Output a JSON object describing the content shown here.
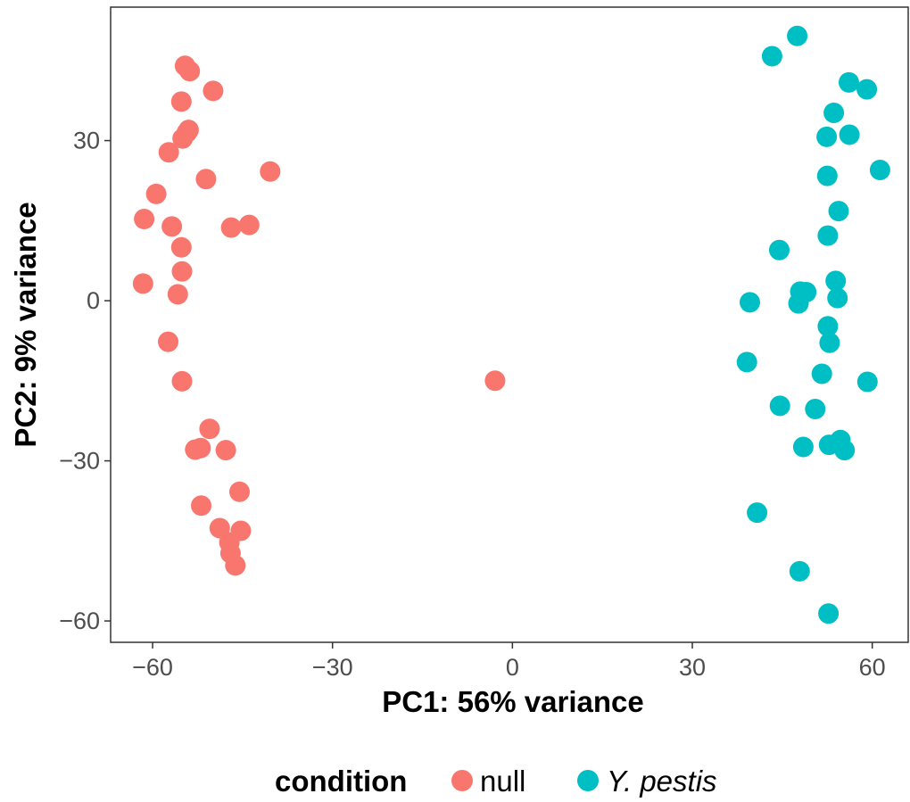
{
  "chart_data": {
    "type": "scatter",
    "xlabel": "PC1: 56% variance",
    "ylabel": "PC2: 9% variance",
    "xlim": [
      -67,
      66
    ],
    "ylim": [
      -64,
      55
    ],
    "x_ticks": [
      -60,
      -30,
      0,
      30,
      60
    ],
    "x_tick_labels": [
      "−60",
      "−30",
      "0",
      "30",
      "60"
    ],
    "y_ticks": [
      -60,
      -30,
      0,
      30
    ],
    "y_tick_labels": [
      "−60",
      "−30",
      "0",
      "30"
    ],
    "grid": false,
    "legend_position": "bottom",
    "legend_title": "condition",
    "series": [
      {
        "name": "null",
        "color": "#F8766D",
        "points": [
          [
            -54.6,
            44
          ],
          [
            -53.8,
            43
          ],
          [
            -49.9,
            39.3
          ],
          [
            -55.2,
            37.3
          ],
          [
            -54,
            32
          ],
          [
            -54.3,
            31.5
          ],
          [
            -55,
            30.4
          ],
          [
            -57.3,
            27.8
          ],
          [
            -40.4,
            24.2
          ],
          [
            -51.1,
            22.8
          ],
          [
            -59.4,
            20
          ],
          [
            -61.4,
            15.3
          ],
          [
            -56.8,
            13.9
          ],
          [
            -46.9,
            13.7
          ],
          [
            -43.9,
            14.2
          ],
          [
            -55.2,
            10
          ],
          [
            -55.1,
            5.5
          ],
          [
            -61.6,
            3.2
          ],
          [
            -55.8,
            1.2
          ],
          [
            -57.4,
            -7.7
          ],
          [
            -55.1,
            -15.1
          ],
          [
            -2.9,
            -15
          ],
          [
            -50.5,
            -24
          ],
          [
            -52.9,
            -27.9
          ],
          [
            -52,
            -27.6
          ],
          [
            -47.8,
            -28
          ],
          [
            -45.5,
            -35.8
          ],
          [
            -51.9,
            -38.4
          ],
          [
            -48.8,
            -42.6
          ],
          [
            -45.3,
            -43.1
          ],
          [
            -47.2,
            -45.3
          ],
          [
            -47,
            -47.3
          ],
          [
            -46.2,
            -49.6
          ]
        ]
      },
      {
        "name": "Y. pestis",
        "color": "#00BFC4",
        "points": [
          [
            47.5,
            49.6
          ],
          [
            43.3,
            45.8
          ],
          [
            56.1,
            40.9
          ],
          [
            59.1,
            39.6
          ],
          [
            53.6,
            35.2
          ],
          [
            52.4,
            30.7
          ],
          [
            56.2,
            31.1
          ],
          [
            61.3,
            24.5
          ],
          [
            52.5,
            23.4
          ],
          [
            54.4,
            16.8
          ],
          [
            52.6,
            12.2
          ],
          [
            44.5,
            9.5
          ],
          [
            53.9,
            3.7
          ],
          [
            48,
            1.7
          ],
          [
            49,
            1.6
          ],
          [
            54.2,
            0.5
          ],
          [
            47.7,
            -0.5
          ],
          [
            39.6,
            -0.3
          ],
          [
            52.6,
            -4.8
          ],
          [
            52.9,
            -7.9
          ],
          [
            39.1,
            -11.5
          ],
          [
            51.6,
            -13.7
          ],
          [
            59.2,
            -15.2
          ],
          [
            44.6,
            -19.7
          ],
          [
            50.5,
            -20.3
          ],
          [
            48.5,
            -27.4
          ],
          [
            52.8,
            -27
          ],
          [
            54.7,
            -26.1
          ],
          [
            55.4,
            -28
          ],
          [
            40.8,
            -39.7
          ],
          [
            47.9,
            -50.7
          ],
          [
            52.7,
            -58.6
          ]
        ]
      }
    ]
  }
}
